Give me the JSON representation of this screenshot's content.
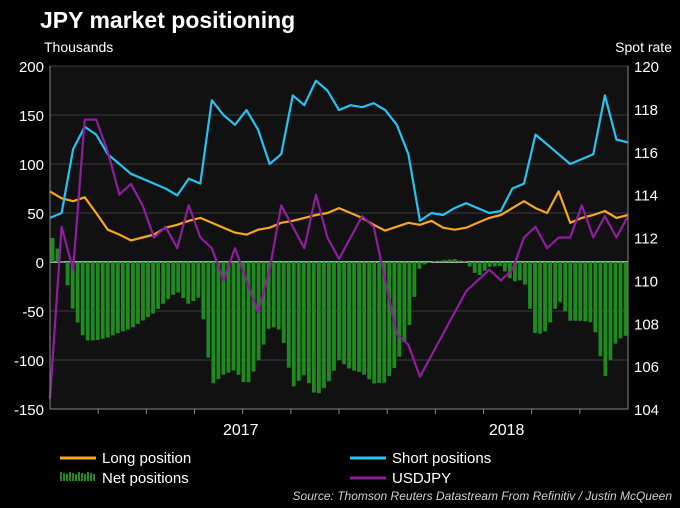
{
  "chart_data": {
    "type": "line",
    "title": "JPY market positioning",
    "left_axis_label": "Thousands",
    "right_axis_label": "Spot rate",
    "source": "Source: Thomson Reuters Datastream From Refinitiv / Justin McQueen",
    "left_ylim": [
      -150,
      200
    ],
    "left_ticks": [
      200,
      150,
      100,
      50,
      0,
      -50,
      -100,
      -150
    ],
    "right_ylim": [
      104,
      120
    ],
    "right_ticks": [
      120,
      118,
      116,
      114,
      112,
      110,
      108,
      106,
      104
    ],
    "x_labels": [
      "2017",
      "2018"
    ],
    "x_label_positions": [
      0.33,
      0.79
    ],
    "grid": true,
    "legend": [
      {
        "name": "Long position",
        "color": "#f5a623",
        "style": "line"
      },
      {
        "name": "Short positions",
        "color": "#29c2f0",
        "style": "line"
      },
      {
        "name": "Net positions",
        "color": "#1f8a1f",
        "style": "bar"
      },
      {
        "name": "USDJPY",
        "color": "#8e1e9e",
        "style": "line"
      }
    ],
    "series": [
      {
        "name": "Long position",
        "axis": "left",
        "color": "#f5a623",
        "x": [
          0,
          0.02,
          0.04,
          0.06,
          0.08,
          0.1,
          0.12,
          0.14,
          0.16,
          0.18,
          0.2,
          0.22,
          0.24,
          0.26,
          0.28,
          0.3,
          0.32,
          0.34,
          0.36,
          0.38,
          0.4,
          0.42,
          0.44,
          0.46,
          0.48,
          0.5,
          0.52,
          0.54,
          0.56,
          0.58,
          0.6,
          0.62,
          0.64,
          0.66,
          0.68,
          0.7,
          0.72,
          0.74,
          0.76,
          0.78,
          0.8,
          0.82,
          0.84,
          0.86,
          0.88,
          0.9,
          0.92,
          0.94,
          0.96,
          0.98,
          1.0
        ],
        "values": [
          72,
          65,
          62,
          66,
          50,
          33,
          28,
          22,
          25,
          28,
          35,
          38,
          42,
          45,
          40,
          35,
          30,
          28,
          33,
          35,
          40,
          42,
          45,
          48,
          50,
          55,
          50,
          45,
          38,
          32,
          36,
          40,
          38,
          42,
          35,
          33,
          35,
          40,
          45,
          48,
          55,
          62,
          55,
          50,
          72,
          40,
          45,
          48,
          52,
          45,
          48
        ]
      },
      {
        "name": "Short positions",
        "axis": "left",
        "color": "#29c2f0",
        "x": [
          0,
          0.02,
          0.04,
          0.06,
          0.08,
          0.1,
          0.12,
          0.14,
          0.16,
          0.18,
          0.2,
          0.22,
          0.24,
          0.26,
          0.28,
          0.3,
          0.32,
          0.34,
          0.36,
          0.38,
          0.4,
          0.42,
          0.44,
          0.46,
          0.48,
          0.5,
          0.52,
          0.54,
          0.56,
          0.58,
          0.6,
          0.62,
          0.64,
          0.66,
          0.68,
          0.7,
          0.72,
          0.74,
          0.76,
          0.78,
          0.8,
          0.82,
          0.84,
          0.86,
          0.88,
          0.9,
          0.92,
          0.94,
          0.96,
          0.98,
          1.0
        ],
        "values": [
          45,
          50,
          115,
          138,
          130,
          110,
          100,
          90,
          85,
          80,
          75,
          68,
          85,
          80,
          165,
          150,
          140,
          155,
          135,
          100,
          110,
          170,
          160,
          185,
          175,
          155,
          160,
          158,
          162,
          155,
          140,
          110,
          42,
          50,
          48,
          55,
          60,
          55,
          50,
          52,
          75,
          80,
          130,
          120,
          110,
          100,
          105,
          110,
          170,
          125,
          122
        ]
      },
      {
        "name": "USDJPY",
        "axis": "right",
        "color": "#8e1e9e",
        "x": [
          0,
          0.02,
          0.04,
          0.06,
          0.08,
          0.1,
          0.12,
          0.14,
          0.16,
          0.18,
          0.2,
          0.22,
          0.24,
          0.26,
          0.28,
          0.3,
          0.32,
          0.34,
          0.36,
          0.38,
          0.4,
          0.42,
          0.44,
          0.46,
          0.48,
          0.5,
          0.52,
          0.54,
          0.56,
          0.58,
          0.6,
          0.62,
          0.64,
          0.66,
          0.68,
          0.7,
          0.72,
          0.74,
          0.76,
          0.78,
          0.8,
          0.82,
          0.84,
          0.86,
          0.88,
          0.9,
          0.92,
          0.94,
          0.96,
          0.98,
          1.0
        ],
        "values": [
          104.5,
          112.5,
          110.5,
          117.5,
          117.5,
          116.0,
          114.0,
          114.5,
          113.5,
          112.0,
          112.5,
          111.5,
          113.5,
          112.0,
          111.5,
          110.0,
          111.5,
          110.0,
          108.5,
          110.5,
          113.5,
          112.5,
          111.5,
          114.0,
          112.0,
          111.0,
          112.0,
          113.0,
          112.5,
          110.0,
          107.5,
          107.0,
          105.5,
          106.5,
          107.5,
          108.5,
          109.5,
          110.0,
          110.5,
          110.0,
          110.5,
          112.0,
          112.5,
          111.5,
          112.0,
          112.0,
          113.5,
          112.0,
          113.0,
          112.0,
          113.0
        ]
      },
      {
        "name": "Net positions",
        "axis": "left",
        "color": "#1f8a1f",
        "style": "bar",
        "x": [
          0,
          0.02,
          0.04,
          0.06,
          0.08,
          0.1,
          0.12,
          0.14,
          0.16,
          0.18,
          0.2,
          0.22,
          0.24,
          0.26,
          0.28,
          0.3,
          0.32,
          0.34,
          0.36,
          0.38,
          0.4,
          0.42,
          0.44,
          0.46,
          0.48,
          0.5,
          0.52,
          0.54,
          0.56,
          0.58,
          0.6,
          0.62,
          0.64,
          0.66,
          0.68,
          0.7,
          0.72,
          0.74,
          0.76,
          0.78,
          0.8,
          0.82,
          0.84,
          0.86,
          0.88,
          0.9,
          0.92,
          0.94,
          0.96,
          0.98,
          1.0
        ],
        "values": [
          30,
          5,
          -50,
          -80,
          -80,
          -77,
          -72,
          -68,
          -60,
          -52,
          -40,
          -30,
          -43,
          -35,
          -125,
          -115,
          -110,
          -127,
          -102,
          -65,
          -70,
          -128,
          -115,
          -137,
          -125,
          -100,
          -110,
          -113,
          -124,
          -123,
          -104,
          -70,
          -4,
          0,
          2,
          3,
          0,
          -15,
          -5,
          -4,
          -20,
          -18,
          -75,
          -70,
          -38,
          -60,
          -60,
          -62,
          -118,
          -80,
          -74
        ]
      }
    ]
  }
}
